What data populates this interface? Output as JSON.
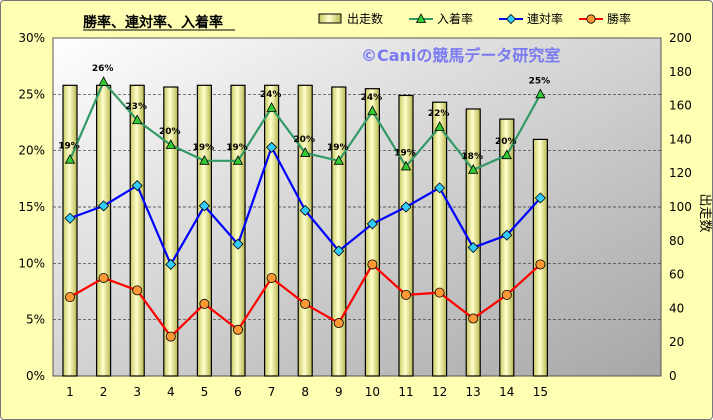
{
  "chart_data": {
    "type": "bar",
    "title": "勝率、連対率、入着率",
    "watermark": "©Caniの競馬データ研究室",
    "y2label": "出走数",
    "categories": [
      "1",
      "2",
      "3",
      "4",
      "5",
      "6",
      "7",
      "8",
      "9",
      "10",
      "11",
      "12",
      "13",
      "14",
      "15"
    ],
    "ylim": [
      0,
      30
    ],
    "y2lim": [
      0,
      200
    ],
    "y_ticks": [
      "0%",
      "5%",
      "10%",
      "15%",
      "20%",
      "25%",
      "30%"
    ],
    "y2_ticks": [
      "0",
      "20",
      "40",
      "60",
      "80",
      "100",
      "120",
      "140",
      "160",
      "180",
      "200"
    ],
    "legend": [
      "出走数",
      "入着率",
      "連対率",
      "勝率"
    ],
    "series": [
      {
        "name": "出走数",
        "kind": "bar",
        "axis": "right",
        "color": "#e6e680",
        "values": [
          172,
          172,
          172,
          171,
          172,
          172,
          172,
          172,
          171,
          170,
          166,
          162,
          158,
          152,
          140
        ]
      },
      {
        "name": "入着率",
        "kind": "line",
        "axis": "left",
        "color": "#339966",
        "values": [
          19.2,
          26.1,
          22.7,
          20.5,
          19.1,
          19.1,
          23.8,
          19.8,
          19.1,
          23.5,
          18.6,
          22.1,
          18.3,
          19.6,
          25.0
        ],
        "labels": [
          "19%",
          "26%",
          "23%",
          "20%",
          "19%",
          "19%",
          "24%",
          "20%",
          "19%",
          "24%",
          "19%",
          "22%",
          "18%",
          "20%",
          "25%"
        ]
      },
      {
        "name": "連対率",
        "kind": "line",
        "axis": "left",
        "color": "#0000ff",
        "values": [
          14.0,
          15.1,
          16.9,
          9.9,
          15.1,
          11.7,
          20.3,
          14.7,
          11.1,
          13.5,
          15.0,
          16.7,
          11.4,
          12.5,
          15.8
        ]
      },
      {
        "name": "勝率",
        "kind": "line",
        "axis": "left",
        "color": "#ff0000",
        "values": [
          7.0,
          8.7,
          7.6,
          3.5,
          6.4,
          4.1,
          8.7,
          6.4,
          4.7,
          9.9,
          7.2,
          7.4,
          5.1,
          7.2,
          9.9
        ]
      }
    ]
  }
}
